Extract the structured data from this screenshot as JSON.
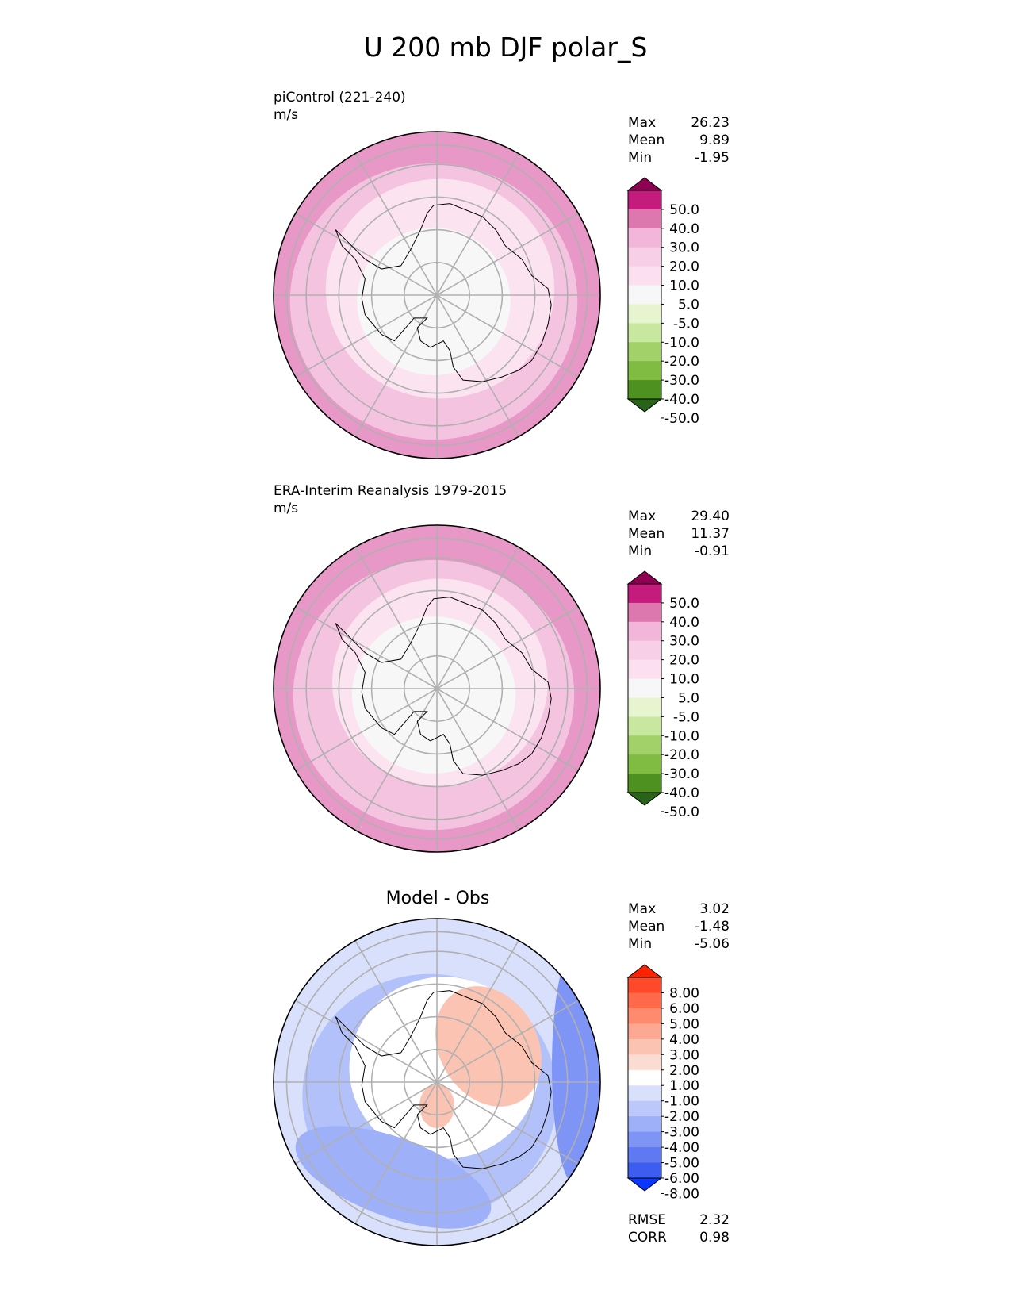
{
  "figure": {
    "title": "U 200 mb DJF polar_S"
  },
  "chart_data": [
    {
      "type": "heatmap",
      "projection": "south-polar-stereographic",
      "title": "piControl (221-240)",
      "units": "m/s",
      "stats": [
        {
          "label": "Max",
          "value": "26.23"
        },
        {
          "label": "Mean",
          "value": "9.89"
        },
        {
          "label": "Min",
          "value": "-1.95"
        }
      ],
      "colorbar": {
        "levels": [
          "50.0",
          "40.0",
          "30.0",
          "20.0",
          "10.0",
          "5.0",
          "-5.0",
          "-10.0",
          "-20.0",
          "-30.0",
          "-40.0",
          "-50.0"
        ],
        "colors": [
          "#8e0152",
          "#c51b7d",
          "#de77ae",
          "#f1b6da",
          "#f7cfe6",
          "#fde0ef",
          "#f7f7f7",
          "#e6f5d0",
          "#c9e89f",
          "#a2d16a",
          "#7fbc41",
          "#4d9221",
          "#276419"
        ]
      },
      "field_rings": [
        {
          "outer_fraction": 1.0,
          "color": "#e798c6"
        },
        {
          "outer_fraction": 0.88,
          "color": "#f4c3e0"
        },
        {
          "outer_fraction": 0.7,
          "color": "#fbe3f0"
        },
        {
          "outer_fraction": 0.47,
          "color": "#f7f7f7"
        }
      ]
    },
    {
      "type": "heatmap",
      "projection": "south-polar-stereographic",
      "title": "ERA-Interim Reanalysis 1979-2015",
      "units": "m/s",
      "stats": [
        {
          "label": "Max",
          "value": "29.40"
        },
        {
          "label": "Mean",
          "value": "11.37"
        },
        {
          "label": "Min",
          "value": "-0.91"
        }
      ],
      "colorbar": {
        "levels": [
          "50.0",
          "40.0",
          "30.0",
          "20.0",
          "10.0",
          "5.0",
          "-5.0",
          "-10.0",
          "-20.0",
          "-30.0",
          "-40.0",
          "-50.0"
        ],
        "colors": [
          "#8e0152",
          "#c51b7d",
          "#de77ae",
          "#f1b6da",
          "#f7cfe6",
          "#fde0ef",
          "#f7f7f7",
          "#e6f5d0",
          "#c9e89f",
          "#a2d16a",
          "#7fbc41",
          "#4d9221",
          "#276419"
        ]
      },
      "field_rings": [
        {
          "outer_fraction": 1.0,
          "color": "#e798c6"
        },
        {
          "outer_fraction": 0.86,
          "color": "#f4c3e0"
        },
        {
          "outer_fraction": 0.66,
          "color": "#fbe3f0"
        },
        {
          "outer_fraction": 0.5,
          "color": "#f7f7f7"
        }
      ]
    },
    {
      "type": "heatmap",
      "projection": "south-polar-stereographic",
      "title": "Model - Obs",
      "units": "",
      "stats": [
        {
          "label": "Max",
          "value": "3.02"
        },
        {
          "label": "Mean",
          "value": "-1.48"
        },
        {
          "label": "Min",
          "value": "-5.06"
        }
      ],
      "bottom_stats": [
        {
          "label": "RMSE",
          "value": "2.32"
        },
        {
          "label": "CORR",
          "value": "0.98"
        }
      ],
      "colorbar": {
        "levels": [
          "8.00",
          "6.00",
          "5.00",
          "4.00",
          "3.00",
          "2.00",
          "1.00",
          "-1.00",
          "-2.00",
          "-3.00",
          "-4.00",
          "-5.00",
          "-6.00",
          "-8.00"
        ],
        "colors": [
          "#ff2200",
          "#ff4a2a",
          "#ff6a4a",
          "#ff8a6e",
          "#fda892",
          "#fbc3b2",
          "#fbdcd3",
          "#ffffff",
          "#d9e0fc",
          "#bcc8fa",
          "#9eb0f8",
          "#7f95f5",
          "#5e79f2",
          "#3d5cf0",
          "#0a36ff"
        ]
      },
      "field_rings": [
        {
          "outer_fraction": 1.0,
          "color": "#d9e0fc"
        },
        {
          "outer_fraction": 0.78,
          "color": "#b3c1fa"
        },
        {
          "outer_fraction": 0.58,
          "color": "#ffffff"
        }
      ]
    }
  ]
}
